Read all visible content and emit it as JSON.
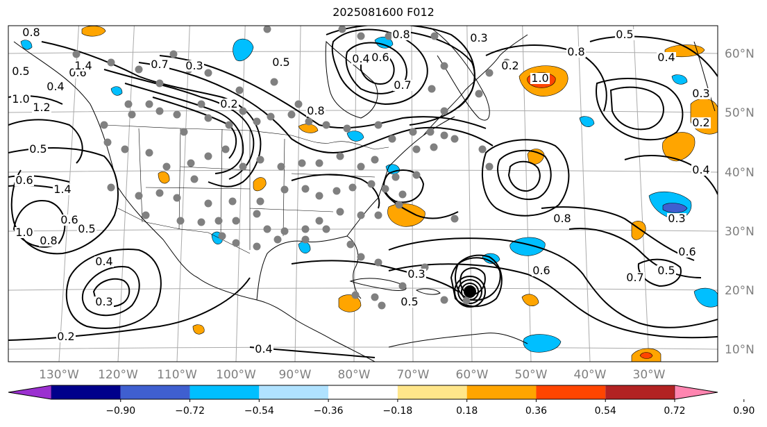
{
  "title": "2025081600 F012",
  "lon_ticks": [
    "130°W",
    "120°W",
    "110°W",
    "100°W",
    "90°W",
    "80°W",
    "70°W",
    "60°W",
    "50°W",
    "40°W",
    "30°W"
  ],
  "lat_ticks": [
    "60°N",
    "50°N",
    "40°N",
    "30°N",
    "20°N",
    "10°N"
  ],
  "colorbar": {
    "ticks": [
      "−0.90",
      "−0.72",
      "−0.54",
      "−0.36",
      "−0.18",
      "0.18",
      "0.36",
      "0.54",
      "0.72",
      "0.90"
    ],
    "colors": [
      "#9b30d0",
      "#00008b",
      "#3f5fd0",
      "#00bfff",
      "#b0e2ff",
      "#ffffff",
      "#ffe68a",
      "#ffa500",
      "#ff4500",
      "#b22222",
      "#ff85b0"
    ]
  },
  "contour_labels": [
    "0.8",
    "0.5",
    "0.4",
    "0.6",
    "1.0",
    "1.2",
    "1.4",
    "0.7",
    "0.3",
    "0.2",
    "0.5",
    "0.8",
    "0.4",
    "0.6",
    "0.8",
    "0.7",
    "0.3",
    "0.2",
    "1.0",
    "0.8",
    "0.5",
    "0.4",
    "0.3",
    "0.2",
    "0.5",
    "0.6",
    "1.4",
    "1.0",
    "0.8",
    "0.6",
    "0.5",
    "0.4",
    "0.3",
    "0.2",
    "0.4",
    "0.3",
    "0.5",
    "0.6",
    "0.8",
    "0.7",
    "0.5",
    "0.6",
    "0.3",
    "0.4"
  ],
  "colors": {
    "contour": "#000000",
    "grid": "#aaaaaa",
    "station_dot": "#808080",
    "tick_text": "#7f7f7f"
  }
}
